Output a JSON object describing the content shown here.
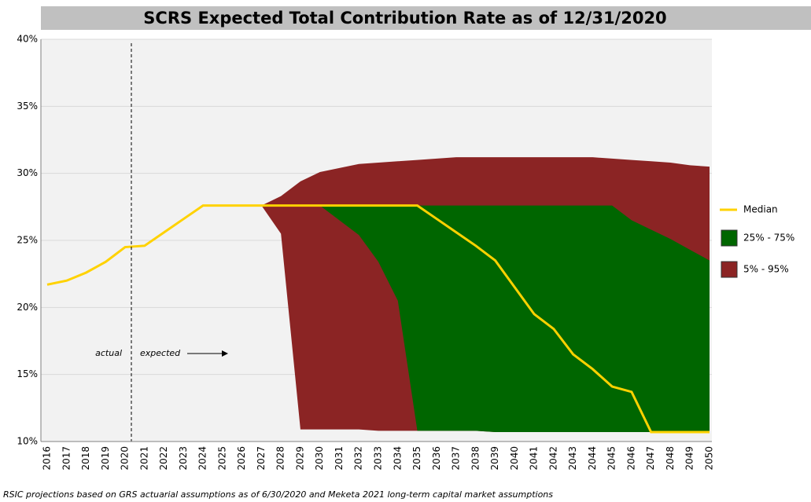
{
  "chart_data": {
    "type": "band",
    "title": "SCRS Expected Total Contribution Rate as of 12/31/2020",
    "footnote": "RSIC projections based on GRS actuarial assumptions as of 6/30/2020 and Meketa 2021 long-term capital market assumptions",
    "annotations": [
      "actual",
      "expected"
    ],
    "categories": [
      "2016",
      "2017",
      "2018",
      "2019",
      "2020",
      "2021",
      "2022",
      "2023",
      "2024",
      "2025",
      "2026",
      "2027",
      "2028",
      "2029",
      "2030",
      "2031",
      "2032",
      "2033",
      "2034",
      "2035",
      "2036",
      "2037",
      "2038",
      "2039",
      "2040",
      "2041",
      "2042",
      "2043",
      "2044",
      "2045",
      "2046",
      "2047",
      "2048",
      "2049",
      "2050"
    ],
    "ylim": [
      10,
      40
    ],
    "yticks": [
      {
        "value": 10,
        "label": "10%"
      },
      {
        "value": 15,
        "label": "15%"
      },
      {
        "value": 20,
        "label": "20%"
      },
      {
        "value": 25,
        "label": "25%"
      },
      {
        "value": 30,
        "label": "30%"
      },
      {
        "value": 35,
        "label": "35%"
      },
      {
        "value": 40,
        "label": "40%"
      }
    ],
    "grid": true,
    "legend": "right",
    "series": [
      {
        "name": "Median",
        "color": "#ffd200",
        "values": [
          21.7,
          22.0,
          22.6,
          23.4,
          24.5,
          24.6,
          25.6,
          26.6,
          27.6,
          27.6,
          27.6,
          27.6,
          27.6,
          27.6,
          27.6,
          27.6,
          27.6,
          27.6,
          27.6,
          27.6,
          26.6,
          25.6,
          24.6,
          23.5,
          21.5,
          19.5,
          18.4,
          16.5,
          15.4,
          14.1,
          13.7,
          10.7,
          10.7,
          10.7,
          10.7
        ]
      },
      {
        "name": "25% - 75%",
        "color": "#006600",
        "low": [
          null,
          null,
          null,
          null,
          null,
          null,
          null,
          null,
          null,
          null,
          null,
          null,
          null,
          null,
          27.6,
          26.5,
          25.4,
          23.4,
          20.5,
          10.8,
          10.8,
          10.8,
          10.8,
          10.7,
          10.7,
          10.7,
          10.7,
          10.7,
          10.7,
          10.7,
          10.7,
          10.7,
          10.7,
          10.7,
          10.7
        ],
        "high": [
          null,
          null,
          null,
          null,
          null,
          null,
          null,
          null,
          null,
          null,
          null,
          null,
          null,
          null,
          27.6,
          27.6,
          27.6,
          27.6,
          27.6,
          27.6,
          27.6,
          27.6,
          27.6,
          27.6,
          27.6,
          27.6,
          27.6,
          27.6,
          27.6,
          27.6,
          26.5,
          25.8,
          25.1,
          24.3,
          23.5
        ]
      },
      {
        "name": "5% - 95%",
        "color": "#8b2424",
        "low": [
          null,
          null,
          null,
          null,
          null,
          null,
          null,
          null,
          null,
          null,
          null,
          27.6,
          25.5,
          10.9,
          10.9,
          10.9,
          10.9,
          10.8,
          10.8,
          10.8,
          10.8,
          10.8,
          10.8,
          10.7,
          10.7,
          10.7,
          10.7,
          10.7,
          10.7,
          10.7,
          10.7,
          10.7,
          10.7,
          10.7,
          10.7
        ],
        "high": [
          null,
          null,
          null,
          null,
          null,
          null,
          null,
          null,
          null,
          null,
          null,
          27.6,
          28.3,
          29.4,
          30.1,
          30.4,
          30.7,
          30.8,
          30.9,
          31.0,
          31.1,
          31.2,
          31.2,
          31.2,
          31.2,
          31.2,
          31.2,
          31.2,
          31.2,
          31.1,
          31.0,
          30.9,
          30.8,
          30.6,
          30.5
        ]
      }
    ]
  }
}
